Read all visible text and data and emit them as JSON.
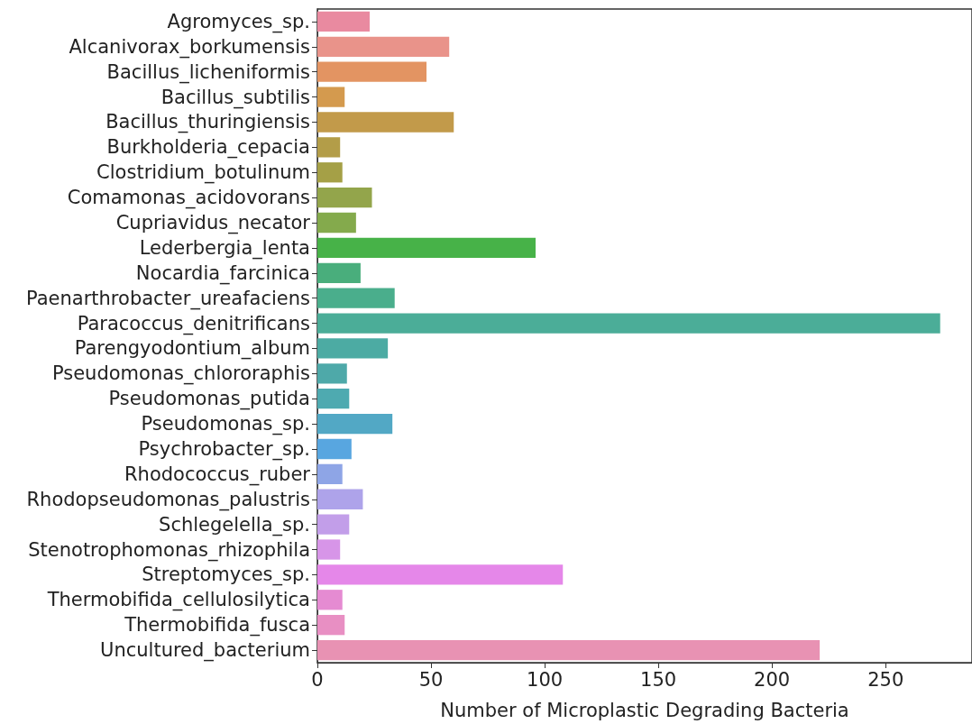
{
  "chart_data": {
    "type": "bar",
    "orientation": "horizontal",
    "xlabel": "Number of Microplastic Degrading Bacteria",
    "categories": [
      "Agromyces_sp.",
      "Alcanivorax_borkumensis",
      "Bacillus_licheniformis",
      "Bacillus_subtilis",
      "Bacillus_thuringiensis",
      "Burkholderia_cepacia",
      "Clostridium_botulinum",
      "Comamonas_acidovorans",
      "Cupriavidus_necator",
      "Lederbergia_lenta",
      "Nocardia_farcinica",
      "Paenarthrobacter_ureafaciens",
      "Paracoccus_denitrificans",
      "Parengyodontium_album",
      "Pseudomonas_chlororaphis",
      "Pseudomonas_putida",
      "Pseudomonas_sp.",
      "Psychrobacter_sp.",
      "Rhodococcus_ruber",
      "Rhodopseudomonas_palustris",
      "Schlegelella_sp.",
      "Stenotrophomonas_rhizophila",
      "Streptomyces_sp.",
      "Thermobifida_cellulosilytica",
      "Thermobifida_fusca",
      "Uncultured_bacterium"
    ],
    "values": [
      23,
      58,
      48,
      12,
      60,
      10,
      11,
      24,
      17,
      96,
      19,
      34,
      274,
      31,
      13,
      14,
      33,
      15,
      11,
      20,
      14,
      10,
      108,
      11,
      12,
      221
    ],
    "colors": [
      "#e98aa0",
      "#e9938a",
      "#e39462",
      "#d49a4e",
      "#c29a4a",
      "#b39d48",
      "#a5a046",
      "#93a54b",
      "#84aa4c",
      "#47b248",
      "#49ae7c",
      "#4aae8c",
      "#4bad98",
      "#4caba3",
      "#4ea9a9",
      "#4eaab0",
      "#52a8c5",
      "#58a6e0",
      "#8ea5e6",
      "#aea3ea",
      "#c29ee9",
      "#d795e8",
      "#e587e9",
      "#e58bd2",
      "#e88fc3",
      "#e892b3"
    ],
    "xlim": [
      0,
      288
    ],
    "xticks": [
      0,
      50,
      100,
      150,
      200,
      250
    ],
    "grid": false
  }
}
